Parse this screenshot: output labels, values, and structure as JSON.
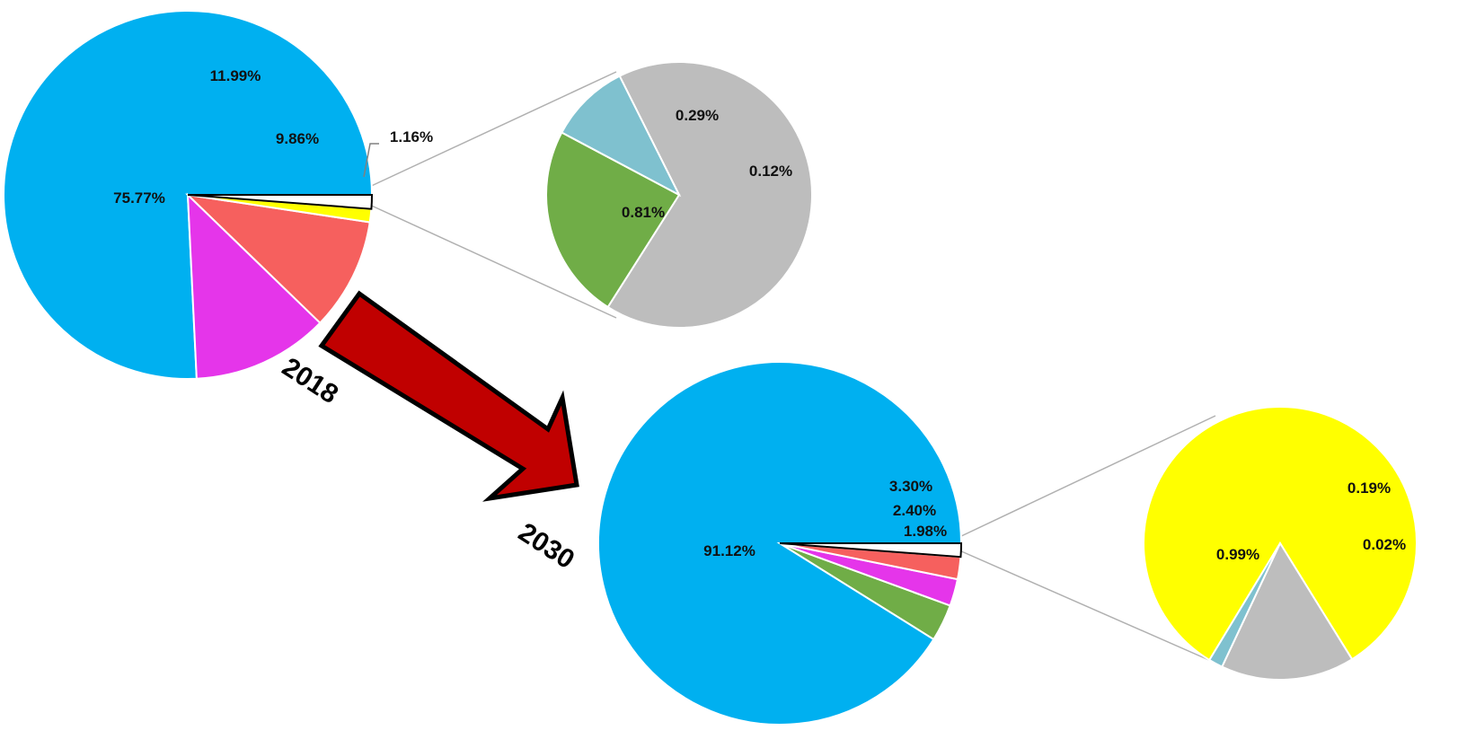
{
  "chart_data": [
    {
      "type": "pie",
      "year": "2018",
      "values": [
        75.77,
        11.99,
        9.86,
        1.16,
        1.22
      ],
      "labels": [
        "75.77%",
        "11.99%",
        "9.86%",
        "1.16%",
        ""
      ],
      "colors": [
        "#00b0f0",
        "#e535ea",
        "#f6605e",
        "#ffff00",
        "#ffffff"
      ],
      "exploded_index": 4
    },
    {
      "type": "pie",
      "year": "",
      "values": [
        0.81,
        0.29,
        0.12
      ],
      "labels": [
        "0.81%",
        "0.29%",
        "0.12%"
      ],
      "colors": [
        "#bdbdbd",
        "#70ad47",
        "#7fc1cf"
      ]
    },
    {
      "type": "pie",
      "year": "2030",
      "values": [
        91.12,
        3.3,
        2.4,
        1.98,
        1.2
      ],
      "labels": [
        "91.12%",
        "3.30%",
        "2.40%",
        "1.98%",
        ""
      ],
      "colors": [
        "#00b0f0",
        "#70ad47",
        "#e535ea",
        "#f6605e",
        "#ffffff"
      ],
      "exploded_index": 4
    },
    {
      "type": "pie",
      "year": "",
      "values": [
        0.99,
        0.19,
        0.02
      ],
      "labels": [
        "0.99%",
        "0.19%",
        "0.02%"
      ],
      "colors": [
        "#ffff00",
        "#bdbdbd",
        "#7fc1cf"
      ]
    }
  ],
  "arrow": {
    "color": "#c00000",
    "outline": "#000000"
  }
}
